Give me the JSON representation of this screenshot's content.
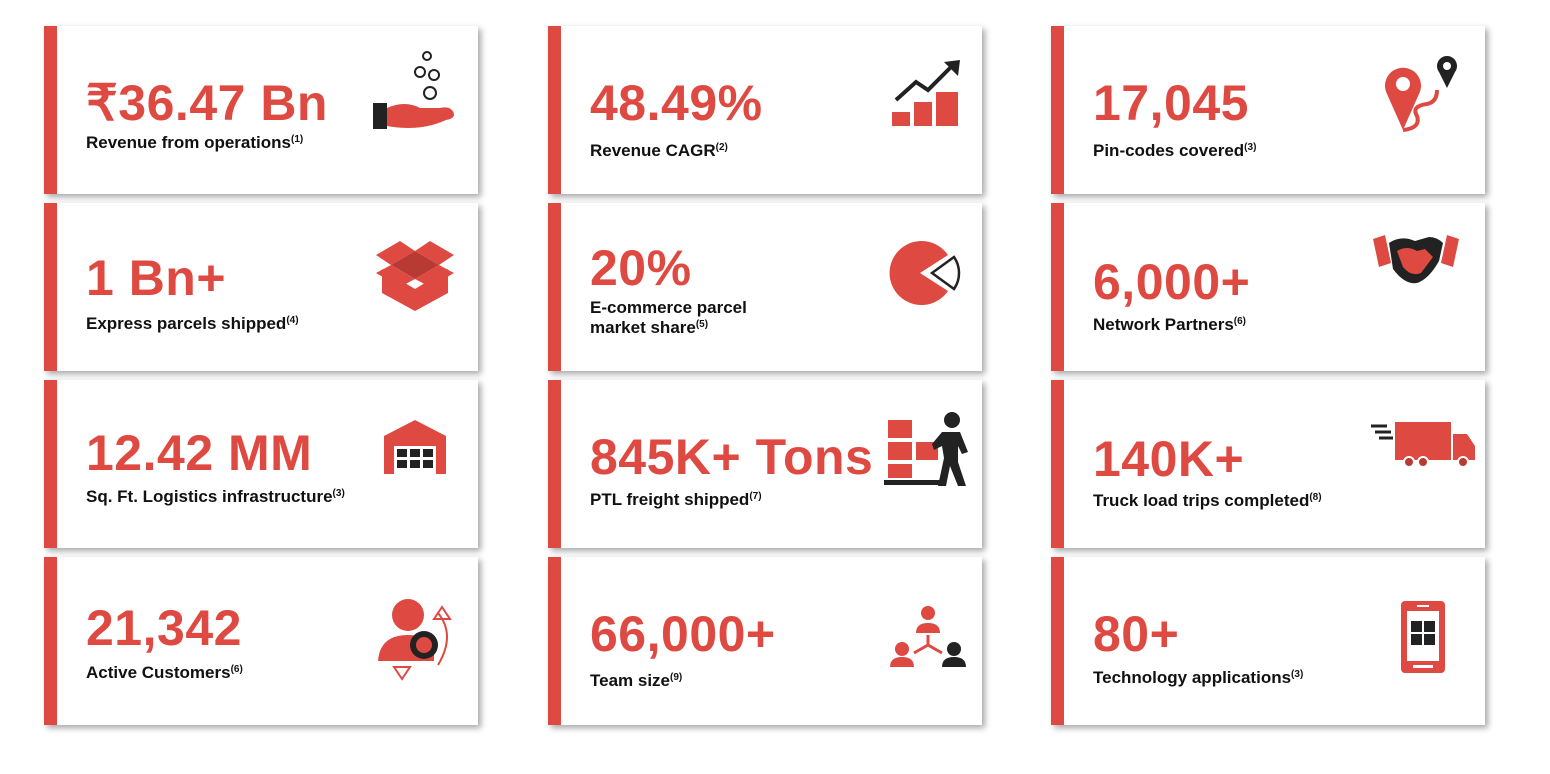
{
  "colors": {
    "accent": "#de4a42",
    "text": "#111111",
    "card_bg": "#ffffff"
  },
  "columns": [
    {
      "cards": [
        {
          "value": "₹36.47 Bn",
          "label": "Revenue from operations",
          "note": "(1)",
          "icon": "hand-coins-icon"
        },
        {
          "value": "1 Bn+",
          "label": "Express parcels shipped",
          "note": "(4)",
          "icon": "open-box-icon"
        },
        {
          "value": "12.42 MM",
          "label": "Sq. Ft. Logistics infrastructure",
          "note": "(3)",
          "icon": "warehouse-icon"
        },
        {
          "value": "21,342",
          "label": "Active Customers",
          "note": "(6)",
          "icon": "customer-gear-icon"
        }
      ]
    },
    {
      "cards": [
        {
          "value": "48.49%",
          "label": "Revenue CAGR",
          "note": "(2)",
          "icon": "growth-chart-icon"
        },
        {
          "value": "20%",
          "label_line1": "E-commerce parcel",
          "label_line2": "market share",
          "note": "(5)",
          "icon": "pie-chart-icon"
        },
        {
          "value": "845K+ Tons",
          "label": "PTL freight shipped",
          "note": "(7)",
          "icon": "worker-boxes-icon"
        },
        {
          "value": "66,000+",
          "label": "Team size",
          "note": "(9)",
          "icon": "team-icon"
        }
      ]
    },
    {
      "cards": [
        {
          "value": "17,045",
          "label": "Pin-codes covered",
          "note": "(3)",
          "icon": "map-pin-route-icon"
        },
        {
          "value": "6,000+",
          "label": "Network Partners",
          "note": "(6)",
          "icon": "handshake-icon"
        },
        {
          "value": "140K+",
          "label": "Truck load trips completed",
          "note": "(8)",
          "icon": "truck-icon"
        },
        {
          "value": "80+",
          "label": "Technology applications",
          "note": "(3)",
          "icon": "mobile-app-icon"
        }
      ]
    }
  ]
}
